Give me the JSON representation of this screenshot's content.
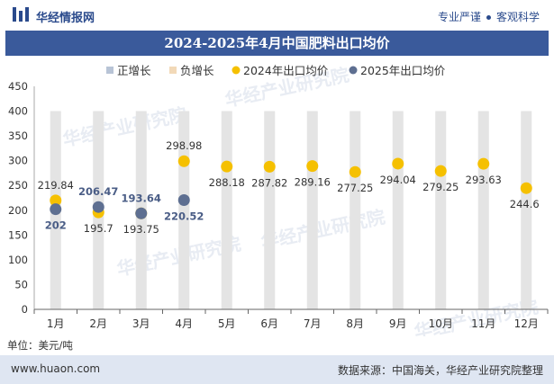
{
  "header": {
    "brand": "华经情报网",
    "slogan_left": "专业严谨",
    "slogan_right": "客观科学"
  },
  "title": "2024-2025年4月中国肥料出口均价",
  "unit_label": "单位：美元/吨",
  "footer": {
    "site": "www.huaon.com",
    "source": "数据来源：中国海关，华经产业研究院整理"
  },
  "watermark": "华经产业研究院",
  "colors": {
    "title_bg": "#3a5a9b",
    "positive": "#b8c4d6",
    "negative": "#f2d9b8",
    "series2024": "#f5c000",
    "series2025": "#5e6f91",
    "band": "#e4e4e4"
  },
  "chart_data": {
    "type": "scatter",
    "categories": [
      "1月",
      "2月",
      "3月",
      "4月",
      "5月",
      "6月",
      "7月",
      "8月",
      "9月",
      "10月",
      "11月",
      "12月"
    ],
    "ylim": [
      0,
      450
    ],
    "yticks": [
      0,
      50,
      100,
      150,
      200,
      250,
      300,
      350,
      400,
      450
    ],
    "legend": [
      "正增长",
      "负增长",
      "2024年出口均价",
      "2025年出口均价"
    ],
    "legend_position": "top",
    "series": [
      {
        "name": "2024年出口均价",
        "values": [
          219.84,
          195.7,
          193.75,
          298.98,
          288.18,
          287.82,
          289.16,
          277.25,
          294.04,
          279.25,
          293.63,
          244.6
        ]
      },
      {
        "name": "2025年出口均价",
        "values": [
          202,
          206.47,
          193.64,
          220.52
        ]
      }
    ],
    "labels_2024": [
      "219.84",
      "195.7",
      "193.75",
      "298.98",
      "288.18",
      "287.82",
      "289.16",
      "277.25",
      "294.04",
      "279.25",
      "293.63",
      "244.6"
    ],
    "labels_2025": [
      "202",
      "206.47",
      "193.64",
      "220.52"
    ]
  }
}
